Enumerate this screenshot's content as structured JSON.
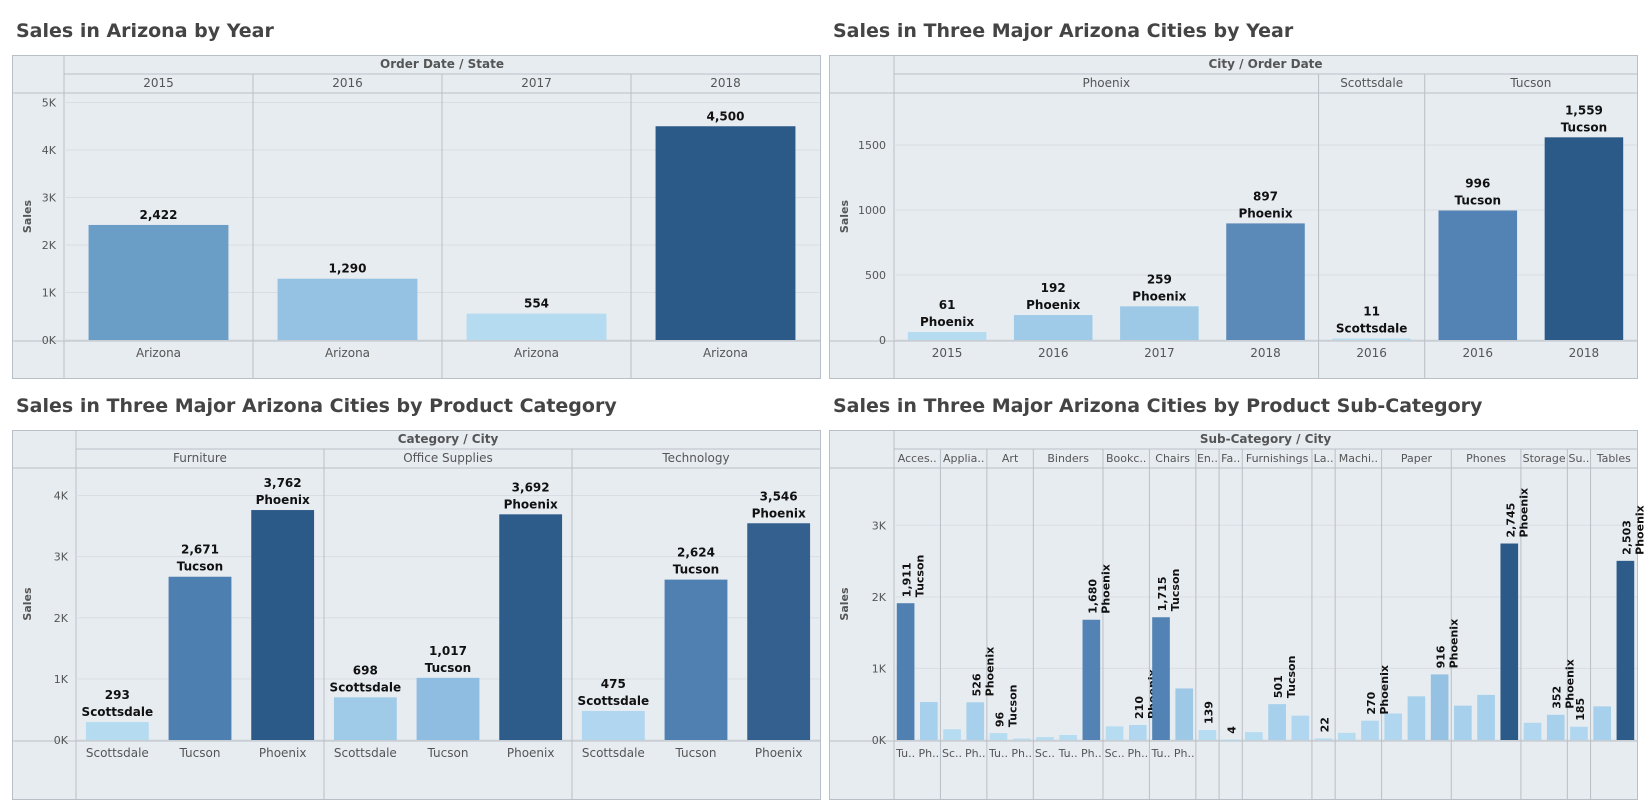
{
  "colors": {
    "plot_bg": "#e7ecf1",
    "border": "#b9bfc6",
    "grid": "#d9dee4",
    "label": "#555555"
  },
  "charts": [
    {
      "title": "Sales in Arizona by Year",
      "header_title": "Order Date / State",
      "ylabel": "Sales",
      "yticks": [
        {
          "v": 0,
          "label": "0K"
        },
        {
          "v": 1000,
          "label": "1K"
        },
        {
          "v": 2000,
          "label": "2K"
        },
        {
          "v": 3000,
          "label": "3K"
        },
        {
          "v": 4000,
          "label": "4K"
        },
        {
          "v": 5000,
          "label": "5K"
        }
      ]
    },
    {
      "title": "Sales in Three Major Arizona Cities by Year",
      "header_title": "City / Order Date",
      "ylabel": "Sales",
      "yticks": [
        {
          "v": 0,
          "label": "0"
        },
        {
          "v": 500,
          "label": "500"
        },
        {
          "v": 1000,
          "label": "1000"
        },
        {
          "v": 1500,
          "label": "1500"
        }
      ]
    },
    {
      "title": "Sales in Three Major Arizona Cities by Product Category",
      "header_title": "Category / City",
      "ylabel": "Sales",
      "yticks": [
        {
          "v": 0,
          "label": "0K"
        },
        {
          "v": 1000,
          "label": "1K"
        },
        {
          "v": 2000,
          "label": "2K"
        },
        {
          "v": 3000,
          "label": "3K"
        },
        {
          "v": 4000,
          "label": "4K"
        }
      ]
    },
    {
      "title": "Sales in Three Major Arizona Cities by Product Sub-Category",
      "header_title": "Sub-Category / City",
      "ylabel": "Sales",
      "yticks": [
        {
          "v": 0,
          "label": "0K"
        },
        {
          "v": 1000,
          "label": "1K"
        },
        {
          "v": 2000,
          "label": "2K"
        },
        {
          "v": 3000,
          "label": "3K"
        }
      ]
    }
  ],
  "chart_data": [
    {
      "type": "bar",
      "title": "Sales in Arizona by Year",
      "ylabel": "Sales",
      "ylim": [
        0,
        5200
      ],
      "groups": [
        "2015",
        "2016",
        "2017",
        "2018"
      ],
      "bars": [
        {
          "group": "2015",
          "category": "Arizona",
          "value": 2422,
          "label": "2,422",
          "color": "#6a9ec7"
        },
        {
          "group": "2016",
          "category": "Arizona",
          "value": 1290,
          "label": "1,290",
          "color": "#95c2e2"
        },
        {
          "group": "2017",
          "category": "Arizona",
          "value": 554,
          "label": "554",
          "color": "#b4dbf0"
        },
        {
          "group": "2018",
          "category": "Arizona",
          "value": 4500,
          "label": "4,500",
          "color": "#2b5988"
        }
      ]
    },
    {
      "type": "bar",
      "title": "Sales in Three Major Arizona Cities by Year",
      "ylabel": "Sales",
      "ylim": [
        0,
        1900
      ],
      "groups": [
        "Phoenix",
        "Scottsdale",
        "Tucson"
      ],
      "bars": [
        {
          "group": "Phoenix",
          "category": "2015",
          "value": 61,
          "label": "61",
          "sub": "Phoenix",
          "color": "#b4dbf0"
        },
        {
          "group": "Phoenix",
          "category": "2016",
          "value": 192,
          "label": "192",
          "sub": "Phoenix",
          "color": "#a0cbe8"
        },
        {
          "group": "Phoenix",
          "category": "2017",
          "value": 259,
          "label": "259",
          "sub": "Phoenix",
          "color": "#9ec9e6"
        },
        {
          "group": "Phoenix",
          "category": "2018",
          "value": 897,
          "label": "897",
          "sub": "Phoenix",
          "color": "#5b8ab8"
        },
        {
          "group": "Scottsdale",
          "category": "2016",
          "value": 11,
          "label": "11",
          "sub": "Scottsdale",
          "color": "#b4dbf0"
        },
        {
          "group": "Tucson",
          "category": "2016",
          "value": 996,
          "label": "996",
          "sub": "Tucson",
          "color": "#5383b4"
        },
        {
          "group": "Tucson",
          "category": "2018",
          "value": 1559,
          "label": "1,559",
          "sub": "Tucson",
          "color": "#2b5988"
        }
      ]
    },
    {
      "type": "bar",
      "title": "Sales in Three Major Arizona Cities by Product Category",
      "ylabel": "Sales",
      "ylim": [
        0,
        4450
      ],
      "groups": [
        "Furniture",
        "Office Supplies",
        "Technology"
      ],
      "bars": [
        {
          "group": "Furniture",
          "category": "Scottsdale",
          "value": 293,
          "label": "293",
          "sub": "Scottsdale",
          "color": "#b4dbf0"
        },
        {
          "group": "Furniture",
          "category": "Tucson",
          "value": 2671,
          "label": "2,671",
          "sub": "Tucson",
          "color": "#4d7fb0"
        },
        {
          "group": "Furniture",
          "category": "Phoenix",
          "value": 3762,
          "label": "3,762",
          "sub": "Phoenix",
          "color": "#2b5988"
        },
        {
          "group": "Office Supplies",
          "category": "Scottsdale",
          "value": 698,
          "label": "698",
          "sub": "Scottsdale",
          "color": "#9fcbe8"
        },
        {
          "group": "Office Supplies",
          "category": "Tucson",
          "value": 1017,
          "label": "1,017",
          "sub": "Tucson",
          "color": "#8fbde1"
        },
        {
          "group": "Office Supplies",
          "category": "Phoenix",
          "value": 3692,
          "label": "3,692",
          "sub": "Phoenix",
          "color": "#2d5b8a"
        },
        {
          "group": "Technology",
          "category": "Scottsdale",
          "value": 475,
          "label": "475",
          "sub": "Scottsdale",
          "color": "#b0d7ef"
        },
        {
          "group": "Technology",
          "category": "Tucson",
          "value": 2624,
          "label": "2,624",
          "sub": "Tucson",
          "color": "#4f80b1"
        },
        {
          "group": "Technology",
          "category": "Phoenix",
          "value": 3546,
          "label": "3,546",
          "sub": "Phoenix",
          "color": "#33608f"
        }
      ]
    },
    {
      "type": "bar",
      "title": "Sales in Three Major Arizona Cities by Product Sub-Category",
      "ylabel": "Sales",
      "ylim": [
        0,
        3800
      ],
      "groups": [
        "Acces..",
        "Applia..",
        "Art",
        "Binders",
        "Bookc..",
        "Chairs",
        "En..",
        "Fa..",
        "Furnishings",
        "La..",
        "Machi..",
        "Paper",
        "Phones",
        "Storage",
        "Su..",
        "Tables"
      ],
      "bars": [
        {
          "group": "Acces..",
          "category": "Tu..",
          "value": 1911,
          "label": "1,911",
          "sub": "Tucson",
          "color": "#4f80b1"
        },
        {
          "group": "Acces..",
          "category": "Ph..",
          "value": 530,
          "color": "#a6d0ec"
        },
        {
          "group": "Applia..",
          "category": "Sc..",
          "value": 150,
          "color": "#b6dcf1"
        },
        {
          "group": "Applia..",
          "category": "Ph..",
          "value": 526,
          "label": "526",
          "sub": "Phoenix",
          "color": "#a6d0ec"
        },
        {
          "group": "Art",
          "category": "Tu..",
          "value": 96,
          "label": "96",
          "sub": "Tucson",
          "color": "#b6dcf1"
        },
        {
          "group": "Art",
          "category": "Ph..",
          "value": 20,
          "color": "#b6dcf1"
        },
        {
          "group": "Binders",
          "category": "Sc..",
          "value": 40,
          "color": "#b6dcf1"
        },
        {
          "group": "Binders",
          "category": "Tu..",
          "value": 70,
          "color": "#b6dcf1"
        },
        {
          "group": "Binders",
          "category": "Ph..",
          "value": 1680,
          "label": "1,680",
          "sub": "Phoenix",
          "color": "#5383b4"
        },
        {
          "group": "Bookc..",
          "category": "Sc..",
          "value": 190,
          "color": "#b6dcf1"
        },
        {
          "group": "Bookc..",
          "category": "Ph..",
          "value": 210,
          "label": "210",
          "sub": "Phoenix",
          "color": "#b0d7ef"
        },
        {
          "group": "Chairs",
          "category": "Tu..",
          "value": 1715,
          "label": "1,715",
          "sub": "Tucson",
          "color": "#5383b4"
        },
        {
          "group": "Chairs",
          "category": "Ph..",
          "value": 720,
          "color": "#9dc8e6"
        },
        {
          "group": "En..",
          "category": "",
          "value": 139,
          "label": "139",
          "color": "#b6dcf1"
        },
        {
          "group": "Fa..",
          "category": "",
          "value": 4,
          "label": "4",
          "color": "#b6dcf1"
        },
        {
          "group": "Furnishings",
          "category": "",
          "value": 110,
          "color": "#b6dcf1"
        },
        {
          "group": "Furnishings",
          "category": "",
          "value": 501,
          "label": "501",
          "sub": "Tucson",
          "color": "#a6d0ec"
        },
        {
          "group": "Furnishings",
          "category": "",
          "value": 340,
          "color": "#b0d7ef"
        },
        {
          "group": "La..",
          "category": "",
          "value": 22,
          "label": "22",
          "color": "#b6dcf1"
        },
        {
          "group": "Machi..",
          "category": "",
          "value": 100,
          "color": "#b6dcf1"
        },
        {
          "group": "Machi..",
          "category": "",
          "value": 270,
          "label": "270",
          "sub": "Phoenix",
          "color": "#b0d7ef"
        },
        {
          "group": "Paper",
          "category": "",
          "value": 370,
          "color": "#b0d7ef"
        },
        {
          "group": "Paper",
          "category": "",
          "value": 610,
          "color": "#a6d0ec"
        },
        {
          "group": "Paper",
          "category": "",
          "value": 916,
          "label": "916",
          "sub": "Phoenix",
          "color": "#95c2e2"
        },
        {
          "group": "Phones",
          "category": "",
          "value": 480,
          "color": "#a6d0ec"
        },
        {
          "group": "Phones",
          "category": "",
          "value": 630,
          "color": "#a6d0ec"
        },
        {
          "group": "Phones",
          "category": "",
          "value": 2745,
          "label": "2,745",
          "sub": "Phoenix",
          "color": "#2b5988"
        },
        {
          "group": "Storage",
          "category": "",
          "value": 240,
          "color": "#b0d7ef"
        },
        {
          "group": "Storage",
          "category": "",
          "value": 352,
          "label": "352",
          "sub": "Phoenix",
          "color": "#a6d0ec"
        },
        {
          "group": "Su..",
          "category": "",
          "value": 185,
          "label": "185",
          "color": "#b0d7ef"
        },
        {
          "group": "Tables",
          "category": "",
          "value": 470,
          "color": "#a6d0ec"
        },
        {
          "group": "Tables",
          "category": "",
          "value": 2503,
          "label": "2,503",
          "sub": "Phoenix",
          "color": "#2d5b8a"
        }
      ],
      "bottom_labels": [
        "Tu..",
        "Ph..",
        "Sc..",
        "Ph..",
        "Tu..",
        "Ph..",
        "Sc..",
        "Tu..",
        "Ph..",
        "Sc..",
        "Ph..",
        "Tu..",
        "Ph.."
      ]
    }
  ]
}
